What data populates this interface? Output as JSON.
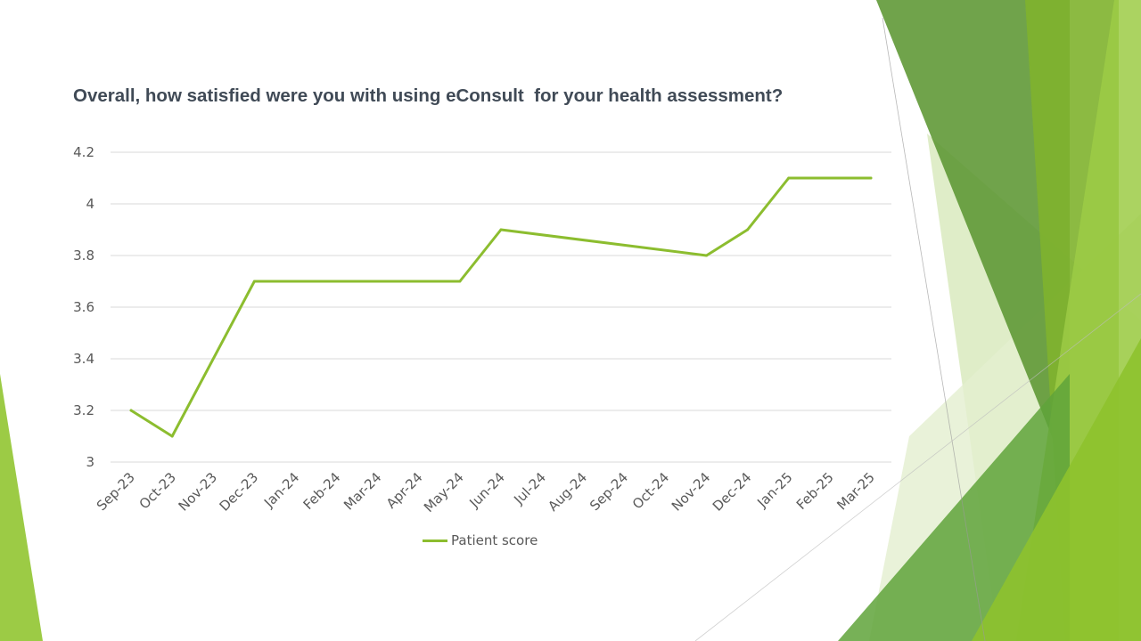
{
  "slide": {
    "title": "Overall, how satisfied were you with using eConsult  for your health assessment?"
  },
  "theme": {
    "line_color": "#8cbd2f",
    "grid_color": "#d9d9d9",
    "text_color": "#595959",
    "title_color": "#404a56",
    "decor_dark_green": "#5f9a3a",
    "decor_light_green": "#8cbd2f",
    "decor_pale_green": "#cfe6a3"
  },
  "chart_data": {
    "type": "line",
    "title": "Overall, how satisfied were you with using eConsult  for your health assessment?",
    "categories": [
      "Sep-23",
      "Oct-23",
      "Nov-23",
      "Dec-23",
      "Jan-24",
      "Feb-24",
      "Mar-24",
      "Apr-24",
      "May-24",
      "Jun-24",
      "Jul-24",
      "Aug-24",
      "Sep-24",
      "Oct-24",
      "Nov-24",
      "Dec-24",
      "Jan-25",
      "Feb-25",
      "Mar-25"
    ],
    "series": [
      {
        "name": "Patient score",
        "x": [
          "Sep-23",
          "Oct-23",
          "Dec-23",
          "May-24",
          "Jun-24",
          "Nov-24",
          "Dec-24",
          "Jan-25",
          "Mar-25"
        ],
        "values": [
          3.2,
          3.1,
          3.7,
          3.7,
          3.9,
          3.8,
          3.9,
          4.1,
          4.1
        ]
      }
    ],
    "yticks": [
      "3",
      "3.2",
      "3.4",
      "3.6",
      "3.8",
      "4",
      "4.2"
    ],
    "ylim": [
      3,
      4.2
    ],
    "grid": true,
    "legend": "bottom"
  }
}
